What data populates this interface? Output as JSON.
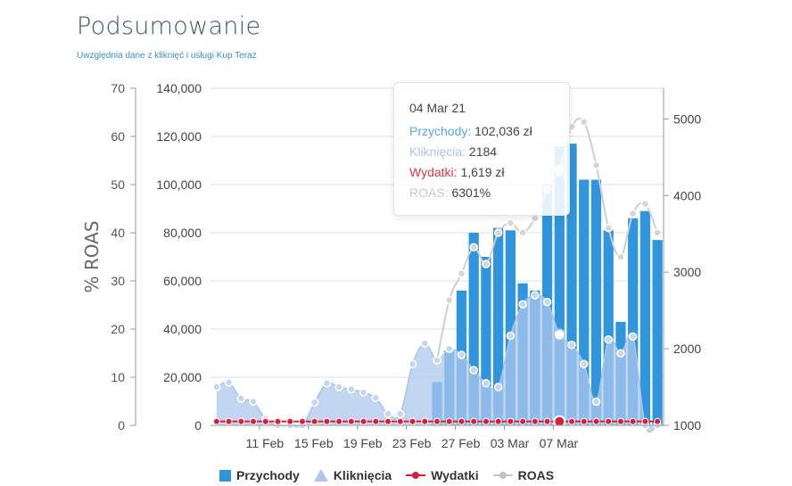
{
  "header": {
    "title": "Podsumowanie",
    "subtitle": "Uwzględnia dane z kliknięć i usługi Kup Teraz"
  },
  "tooltip": {
    "date": "04 Mar 21",
    "rows": [
      {
        "label": "Przychody:",
        "value": "102,036 zł",
        "color": "#5aa7dc"
      },
      {
        "label": "Kliknięcia:",
        "value": "2184",
        "color": "#a9c4e8"
      },
      {
        "label": "Wydatki:",
        "value": "1,619 zł",
        "color": "#e0394b"
      },
      {
        "label": "ROAS:",
        "value": "6301%",
        "color": "#c8c8c8"
      }
    ]
  },
  "legend": [
    {
      "label": "Przychody",
      "symbol": "bar",
      "color": "#2e95de"
    },
    {
      "label": "Kliknięcia",
      "symbol": "triangle",
      "color": "#aec8ec"
    },
    {
      "label": "Wydatki",
      "symbol": "line",
      "color": "#d62038"
    },
    {
      "label": "ROAS",
      "symbol": "line",
      "color": "#c4c4c4"
    }
  ],
  "chart_data": {
    "type": "bar",
    "x_tick_labels": [
      "11 Feb",
      "15 Feb",
      "19 Feb",
      "23 Feb",
      "27 Feb",
      "03 Mar",
      "07 Mar"
    ],
    "axes": {
      "roas_left": {
        "label": "% ROAS",
        "range": [
          0,
          70
        ],
        "ticks": [
          0,
          10,
          20,
          30,
          40,
          50,
          60,
          70
        ]
      },
      "revenue_left": {
        "range": [
          0,
          140000
        ],
        "ticks": [
          "0",
          "20,000",
          "40,000",
          "60,000",
          "80,000",
          "100,000",
          "120,000",
          "140,000"
        ]
      },
      "clicks_right": {
        "range": [
          1000,
          5400
        ],
        "ticks": [
          1000,
          2000,
          3000,
          4000,
          5000
        ]
      }
    },
    "grid": true,
    "legend_position": "bottom",
    "series": [
      {
        "name": "Przychody",
        "kind": "bar",
        "axis": "revenue_left",
        "values": [
          0,
          0,
          0,
          0,
          0,
          0,
          0,
          0,
          0,
          0,
          0,
          0,
          0,
          0,
          0,
          0,
          0,
          0,
          18000,
          31000,
          56000,
          80000,
          70000,
          82000,
          81000,
          59000,
          56000,
          100000,
          116000,
          117000,
          102036,
          102000,
          81000,
          43000,
          86000,
          89000,
          77000
        ]
      },
      {
        "name": "Kliknięcia",
        "kind": "area",
        "axis": "clicks_right",
        "values": [
          1500,
          1560,
          1350,
          1310,
          1080,
          1000,
          1000,
          1000,
          1300,
          1550,
          1500,
          1470,
          1430,
          1360,
          1150,
          1150,
          1800,
          2070,
          1850,
          2000,
          1920,
          1720,
          1550,
          1500,
          2170,
          2580,
          2700,
          2610,
          2184,
          2050,
          1800,
          1310,
          2120,
          1940,
          2160,
          1000,
          1000
        ]
      },
      {
        "name": "Wydatki",
        "kind": "line",
        "axis": "revenue_left",
        "values": [
          1600,
          1600,
          1600,
          1600,
          1600,
          1600,
          1600,
          1600,
          1600,
          1600,
          1600,
          1600,
          1600,
          1600,
          1600,
          1600,
          1600,
          1600,
          1600,
          1600,
          1600,
          1600,
          1600,
          1600,
          1600,
          1600,
          1600,
          1600,
          1619,
          1600,
          1600,
          1600,
          1600,
          1600,
          1600,
          1600,
          1600
        ]
      },
      {
        "name": "ROAS",
        "kind": "line",
        "axis": "roas_left",
        "values": [
          null,
          null,
          null,
          null,
          null,
          null,
          null,
          null,
          null,
          null,
          null,
          null,
          null,
          null,
          null,
          null,
          null,
          null,
          13.5,
          26,
          31.5,
          37,
          33.5,
          40,
          42,
          40,
          43,
          49,
          53,
          62,
          63,
          54,
          41,
          35,
          44,
          46,
          40
        ]
      }
    ]
  }
}
